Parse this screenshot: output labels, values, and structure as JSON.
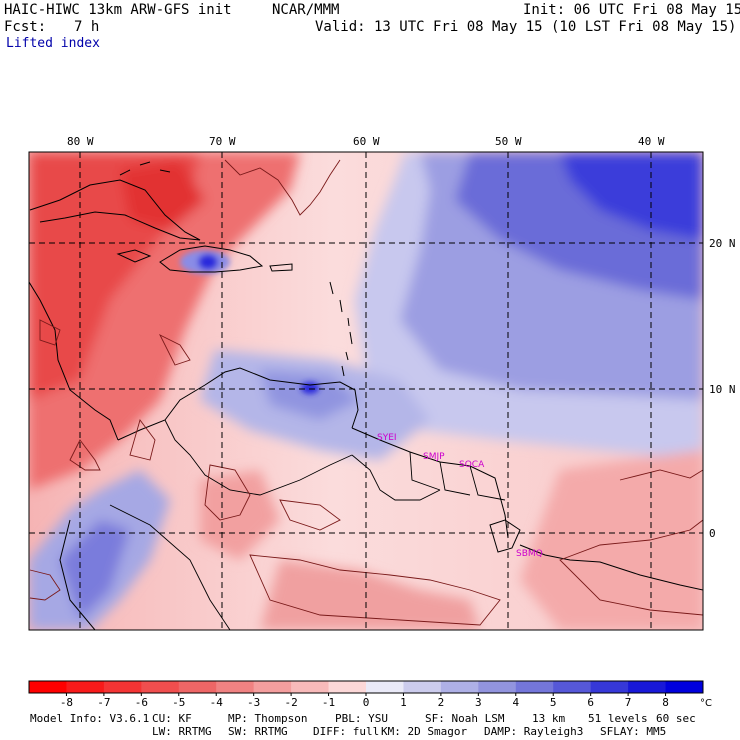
{
  "header": {
    "model_line": "HAIC-HIWC 13km ARW-GFS init",
    "org": "NCAR/MMM",
    "init": "Init: 06 UTC Fri 08 May 15",
    "fcst_label": "Fcst:",
    "fcst_value": "7 h",
    "valid": "Valid: 13 UTC Fri 08 May 15 (10 LST Fri 08 May 15)",
    "field": "Lifted index"
  },
  "map": {
    "lon_labels": [
      "80 W",
      "70 W",
      "60 W",
      "50 W",
      "40 W"
    ],
    "lat_labels": [
      "20 N",
      "10 N",
      "0"
    ],
    "stations": [
      "SYEI",
      "SMJP",
      "SOCA",
      "SBMQ"
    ],
    "colors": {
      "border": "#000000",
      "contour": "#7a1a1a",
      "station": "#cc00cc"
    }
  },
  "colorbar": {
    "ticks": [
      "-8",
      "-7",
      "-6",
      "-5",
      "-4",
      "-3",
      "-2",
      "-1",
      "0",
      "1",
      "2",
      "3",
      "4",
      "5",
      "6",
      "7",
      "8"
    ],
    "unit": "°C",
    "colors": [
      "#ff0000",
      "#f81a1a",
      "#f43434",
      "#f04e4e",
      "#ee6666",
      "#f08282",
      "#f49e9e",
      "#f8baba",
      "#fcd8d8",
      "#eaeaf8",
      "#cccced",
      "#aeb0e6",
      "#9294de",
      "#7476da",
      "#5658d8",
      "#3638d8",
      "#1818d8",
      "#0000dd"
    ]
  },
  "footer": {
    "line1": [
      "Model Info: V3.6.1",
      "CU: KF",
      "MP: Thompson",
      "PBL: YSU",
      "SF: Noah LSM",
      "13 km",
      "51 levels",
      "60 sec"
    ],
    "line2": [
      "LW: RRTMG",
      "SW: RRTMG",
      "DIFF: full",
      "KM: 2D Smagor",
      "DAMP: Rayleigh3",
      "SFLAY: MM5"
    ]
  }
}
